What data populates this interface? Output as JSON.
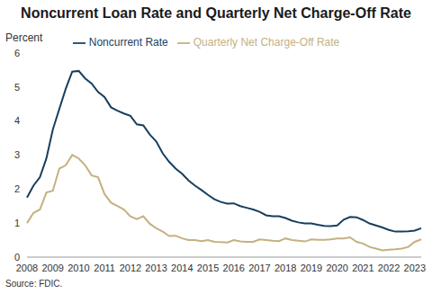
{
  "chart_data": {
    "type": "line",
    "title": "Noncurrent Loan Rate and Quarterly Net Charge-Off Rate",
    "y_label": "Percent",
    "annotations": [
      "Source: FDIC."
    ],
    "categories": [
      "2008",
      null,
      null,
      null,
      "2009",
      null,
      null,
      null,
      "2010",
      null,
      null,
      null,
      "2011",
      null,
      null,
      null,
      "2012",
      null,
      null,
      null,
      "2013",
      null,
      null,
      null,
      "2014",
      null,
      null,
      null,
      "2015",
      null,
      null,
      null,
      "2016",
      null,
      null,
      null,
      "2017",
      null,
      null,
      null,
      "2018",
      null,
      null,
      null,
      "2019",
      null,
      null,
      null,
      "2020",
      null,
      null,
      null,
      "2021",
      null,
      null,
      null,
      "2022",
      null,
      null,
      null,
      "2023",
      null
    ],
    "series": [
      {
        "name": "Noncurrent Rate",
        "color": "#173f5f",
        "values": [
          1.75,
          2.1,
          2.35,
          2.9,
          3.75,
          4.35,
          4.95,
          5.45,
          5.47,
          5.25,
          5.1,
          4.85,
          4.7,
          4.4,
          4.3,
          4.22,
          4.15,
          3.9,
          3.87,
          3.6,
          3.4,
          3.05,
          2.8,
          2.6,
          2.45,
          2.25,
          2.1,
          1.97,
          1.83,
          1.7,
          1.62,
          1.57,
          1.58,
          1.5,
          1.45,
          1.4,
          1.33,
          1.23,
          1.2,
          1.2,
          1.15,
          1.07,
          1.02,
          0.99,
          0.99,
          0.95,
          0.92,
          0.91,
          0.93,
          1.1,
          1.18,
          1.17,
          1.09,
          0.99,
          0.93,
          0.87,
          0.8,
          0.75,
          0.75,
          0.76,
          0.78,
          0.85
        ]
      },
      {
        "name": "Quarterly Net Charge-Off Rate",
        "color": "#c4b17f",
        "values": [
          1.0,
          1.3,
          1.4,
          1.9,
          1.95,
          2.6,
          2.7,
          3.0,
          2.9,
          2.7,
          2.4,
          2.35,
          1.85,
          1.6,
          1.5,
          1.4,
          1.2,
          1.12,
          1.2,
          0.98,
          0.85,
          0.75,
          0.62,
          0.63,
          0.55,
          0.5,
          0.5,
          0.47,
          0.5,
          0.45,
          0.44,
          0.43,
          0.5,
          0.46,
          0.45,
          0.45,
          0.52,
          0.5,
          0.48,
          0.47,
          0.55,
          0.5,
          0.48,
          0.46,
          0.52,
          0.51,
          0.51,
          0.52,
          0.55,
          0.55,
          0.58,
          0.45,
          0.4,
          0.3,
          0.25,
          0.2,
          0.22,
          0.23,
          0.25,
          0.3,
          0.45,
          0.52
        ]
      }
    ],
    "ylim": [
      0,
      6
    ],
    "yticks": [
      0,
      1,
      2,
      3,
      4,
      5,
      6
    ],
    "legend": "top",
    "grid": false
  }
}
